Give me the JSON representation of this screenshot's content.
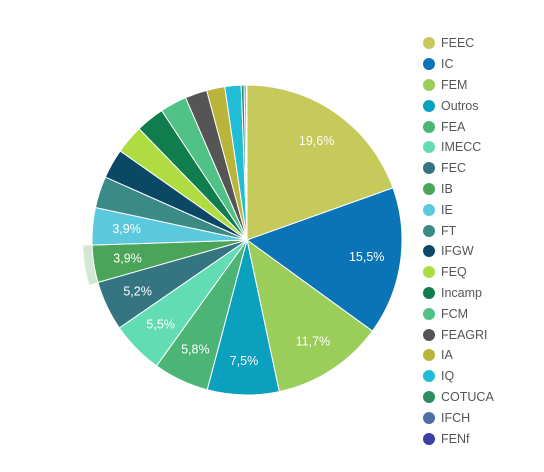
{
  "chart_data": {
    "type": "pie",
    "series": [
      {
        "label": "FEEC",
        "value": 19.6,
        "color": "#c5ca5a",
        "display": "19,6%"
      },
      {
        "label": "IC",
        "value": 15.5,
        "color": "#0b74b7",
        "display": "15,5%"
      },
      {
        "label": "FEM",
        "value": 11.7,
        "color": "#9bcd5a",
        "display": "11,7%"
      },
      {
        "label": "Outros",
        "value": 7.5,
        "color": "#0aa0be",
        "display": "7,5%"
      },
      {
        "label": "FEA",
        "value": 5.8,
        "color": "#4cb575",
        "display": "5,8%"
      },
      {
        "label": "IMECC",
        "value": 5.5,
        "color": "#62dcb2",
        "display": "5,5%"
      },
      {
        "label": "FEC",
        "value": 5.2,
        "color": "#357582",
        "display": "5,2%"
      },
      {
        "label": "IB",
        "value": 3.9,
        "color": "#4aa558",
        "display": "3,9%"
      },
      {
        "label": "IE",
        "value": 3.9,
        "color": "#5bc9dd",
        "display": "3,9%"
      },
      {
        "label": "FT",
        "value": 3.3,
        "color": "#3a8a85",
        "display": ""
      },
      {
        "label": "IFGW",
        "value": 3.1,
        "color": "#0b4866",
        "display": ""
      },
      {
        "label": "FEQ",
        "value": 3.0,
        "color": "#afdc41",
        "display": ""
      },
      {
        "label": "Incamp",
        "value": 3.0,
        "color": "#0f7d4d",
        "display": ""
      },
      {
        "label": "FCM",
        "value": 2.8,
        "color": "#50c285",
        "display": ""
      },
      {
        "label": "FEAGRI",
        "value": 2.3,
        "color": "#555555",
        "display": ""
      },
      {
        "label": "IA",
        "value": 1.9,
        "color": "#b9b43a",
        "display": ""
      },
      {
        "label": "IQ",
        "value": 1.7,
        "color": "#21bcd5",
        "display": ""
      },
      {
        "label": "COTUCA",
        "value": 0.3,
        "color": "#2e8e62",
        "display": ""
      },
      {
        "label": "IFCH",
        "value": 0.2,
        "color": "#4f6ea5",
        "display": ""
      },
      {
        "label": "FENf",
        "value": 0.1,
        "color": "#3a3fa5",
        "display": ""
      }
    ],
    "legend_position": "right",
    "start_angle": "top",
    "direction": "clockwise",
    "highlighted": "IB"
  }
}
